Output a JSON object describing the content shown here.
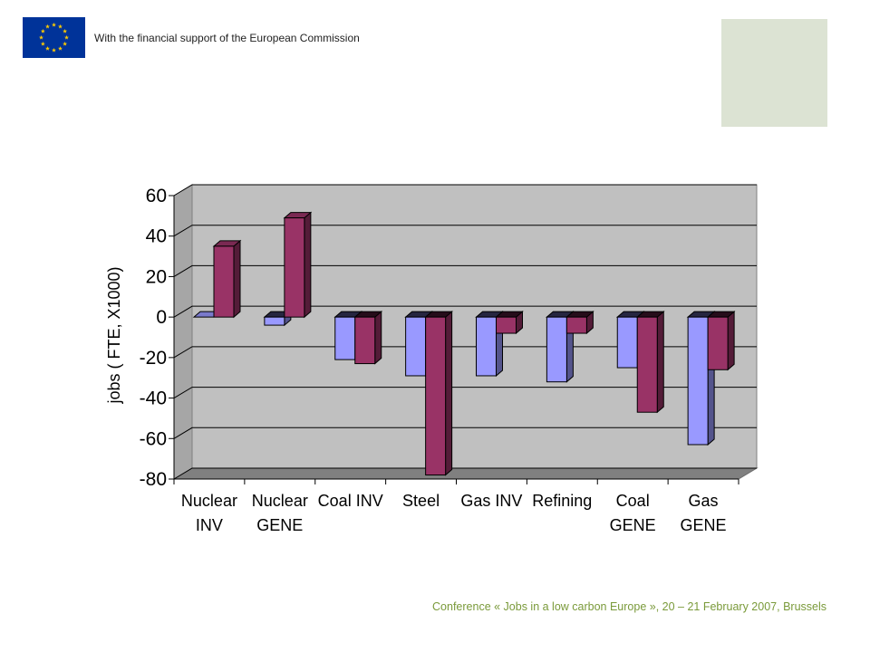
{
  "header": {
    "support_text": "With the financial support of the European Commission",
    "flag_icon": "eu-flag-icon"
  },
  "colors": {
    "flag_blue": "#003399",
    "flag_star": "#ffcc00",
    "green_block": "#dce3d3",
    "plot_bg": "#c0c0c0",
    "floor": "#808080",
    "series_a": "#9999ff",
    "series_b": "#993366",
    "footer_text": "#7a9a3a"
  },
  "chart_data": {
    "type": "bar",
    "categories": [
      [
        "Nuclear",
        "INV"
      ],
      [
        "Nuclear",
        "GENE"
      ],
      [
        "Coal INV"
      ],
      [
        "Steel"
      ],
      [
        "Gas INV"
      ],
      [
        "Refining"
      ],
      [
        "Coal",
        "GENE"
      ],
      [
        "Gas",
        "GENE"
      ]
    ],
    "series": [
      {
        "color": "#9999ff",
        "values": [
          0,
          -4,
          -21,
          -29,
          -29,
          -32,
          -25,
          -63
        ]
      },
      {
        "color": "#993366",
        "values": [
          35,
          49,
          -23,
          -78,
          -8,
          -8,
          -47,
          -26
        ]
      }
    ],
    "ylabel": "jobs ( FTE, X1000)",
    "ylim": [
      -80,
      60
    ],
    "yticks": [
      "60",
      "40",
      "20",
      "0",
      "-20",
      "-40",
      "-60",
      "-80"
    ],
    "ytick_values": [
      60,
      40,
      20,
      0,
      -20,
      -40,
      -60,
      -80
    ],
    "grid": true,
    "legend": "none",
    "style": "3d-column"
  },
  "footer": {
    "text": "Conference « Jobs in a low carbon Europe », 20 – 21 February 2007, Brussels"
  }
}
